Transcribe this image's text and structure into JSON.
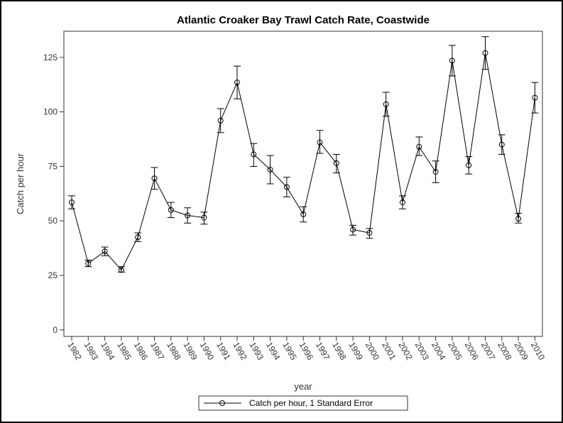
{
  "chart_data": {
    "type": "line",
    "title": "Atlantic Croaker Bay Trawl Catch Rate, Coastwide",
    "xlabel": "year",
    "ylabel": "Catch per hour",
    "ylim": [
      -3,
      137
    ],
    "yticks": [
      0,
      25,
      50,
      75,
      100,
      125
    ],
    "grid": false,
    "legend_position": "bottom-center",
    "categories": [
      "1982",
      "1983",
      "1984",
      "1985",
      "1986",
      "1987",
      "1988",
      "1989",
      "1990",
      "1991",
      "1992",
      "1993",
      "1994",
      "1995",
      "1996",
      "1997",
      "1998",
      "1999",
      "2000",
      "2001",
      "2002",
      "2003",
      "2004",
      "2005",
      "2006",
      "2007",
      "2008",
      "2009",
      "2010"
    ],
    "series": [
      {
        "name": "Catch per hour, 1 Standard Error",
        "color": "#000000",
        "marker": "circle",
        "values": [
          58.5,
          30.5,
          36,
          27.5,
          42.5,
          69.5,
          55,
          52.5,
          51.5,
          96,
          113.5,
          80.5,
          73.5,
          65.5,
          53,
          86,
          76.5,
          46,
          44.5,
          103.5,
          58.5,
          84,
          72.5,
          123.5,
          75.5,
          127,
          85,
          51,
          106.5
        ],
        "lower": [
          55.5,
          29,
          34,
          26.5,
          40.5,
          64.5,
          51.5,
          49,
          48.5,
          90.5,
          106,
          75,
          67,
          61,
          49.5,
          81,
          72,
          43.5,
          42,
          98,
          55.5,
          80,
          67.5,
          116.5,
          71.5,
          119.5,
          80.5,
          49,
          99.5
        ],
        "upper": [
          61.5,
          32,
          38,
          29,
          44.5,
          74.5,
          58.5,
          56,
          54,
          101.5,
          121,
          85.5,
          80,
          70,
          56.5,
          91.5,
          80.5,
          48,
          46.5,
          109,
          61.5,
          88.5,
          77.5,
          130.5,
          79.5,
          134.5,
          89.5,
          53.5,
          113.5
        ]
      }
    ]
  }
}
